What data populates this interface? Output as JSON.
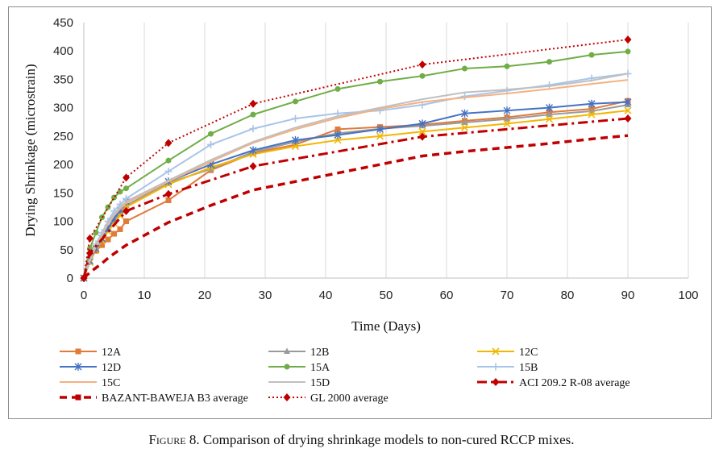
{
  "caption": {
    "prefix": "Figure 8.",
    "text": " Comparison of drying shrinkage models to non-cured RCCP mixes."
  },
  "chart_data": {
    "type": "line",
    "xlabel": "Time (Days)",
    "ylabel": "Drying Shrinkage (microstrain)",
    "xlim": [
      0,
      100
    ],
    "ylim": [
      0,
      450
    ],
    "xticks": [
      0,
      10,
      20,
      30,
      40,
      50,
      60,
      70,
      80,
      90,
      100
    ],
    "yticks": [
      0,
      50,
      100,
      150,
      200,
      250,
      300,
      350,
      400,
      450
    ],
    "grid": "vertical",
    "legend_position": "bottom",
    "series": [
      {
        "name": "12A",
        "color": "#e07b39",
        "marker": "square",
        "dash": "solid",
        "width": 2,
        "x": [
          0,
          1,
          2,
          3,
          4,
          5,
          6,
          7,
          14,
          21,
          28,
          35,
          42,
          49,
          56,
          63,
          70,
          77,
          84,
          90
        ],
        "y": [
          0,
          35,
          48,
          58,
          68,
          78,
          86,
          100,
          137,
          190,
          220,
          235,
          262,
          266,
          270,
          277,
          283,
          292,
          298,
          312
        ]
      },
      {
        "name": "12B",
        "color": "#9a9a9a",
        "marker": "triangle",
        "dash": "solid",
        "width": 2,
        "x": [
          0,
          1,
          2,
          3,
          4,
          5,
          6,
          7,
          14,
          21,
          28,
          35,
          42,
          49,
          56,
          63,
          70,
          77,
          84,
          90
        ],
        "y": [
          0,
          30,
          52,
          68,
          85,
          100,
          115,
          128,
          168,
          192,
          222,
          240,
          255,
          263,
          268,
          274,
          280,
          288,
          294,
          305
        ]
      },
      {
        "name": "12C",
        "color": "#f2b705",
        "marker": "x",
        "dash": "solid",
        "width": 2,
        "x": [
          0,
          1,
          2,
          3,
          4,
          5,
          6,
          7,
          14,
          21,
          28,
          35,
          42,
          49,
          56,
          63,
          70,
          77,
          84,
          90
        ],
        "y": [
          0,
          28,
          50,
          66,
          82,
          97,
          110,
          125,
          165,
          195,
          218,
          232,
          243,
          250,
          258,
          265,
          272,
          280,
          288,
          295
        ]
      },
      {
        "name": "12D",
        "color": "#4472c4",
        "marker": "star",
        "dash": "solid",
        "width": 2,
        "x": [
          0,
          1,
          2,
          3,
          4,
          5,
          6,
          7,
          14,
          21,
          28,
          35,
          42,
          49,
          56,
          63,
          70,
          77,
          84,
          90
        ],
        "y": [
          0,
          30,
          52,
          70,
          88,
          105,
          120,
          135,
          170,
          200,
          225,
          243,
          252,
          262,
          272,
          290,
          295,
          300,
          307,
          310
        ]
      },
      {
        "name": "15A",
        "color": "#70ad47",
        "marker": "circle",
        "dash": "solid",
        "width": 2,
        "x": [
          0,
          1,
          2,
          3,
          4,
          5,
          6,
          7,
          14,
          21,
          28,
          35,
          42,
          49,
          56,
          63,
          70,
          77,
          84,
          90
        ],
        "y": [
          0,
          52,
          80,
          107,
          125,
          142,
          152,
          158,
          207,
          254,
          288,
          311,
          333,
          346,
          356,
          369,
          373,
          381,
          393,
          399
        ]
      },
      {
        "name": "15B",
        "color": "#a9c4e7",
        "marker": "plus",
        "dash": "solid",
        "width": 2,
        "x": [
          0,
          1,
          2,
          3,
          4,
          5,
          6,
          7,
          14,
          21,
          28,
          35,
          42,
          49,
          56,
          63,
          70,
          77,
          84,
          90
        ],
        "y": [
          0,
          35,
          60,
          80,
          100,
          118,
          130,
          140,
          188,
          235,
          263,
          281,
          290,
          295,
          305,
          320,
          330,
          340,
          352,
          360
        ]
      },
      {
        "name": "15C",
        "color": "#f4b183",
        "marker": "none",
        "dash": "solid",
        "width": 2,
        "x": [
          0,
          1,
          2,
          3,
          4,
          5,
          6,
          7,
          14,
          21,
          28,
          35,
          42,
          49,
          56,
          63,
          70,
          77,
          84,
          90
        ],
        "y": [
          0,
          30,
          55,
          75,
          95,
          110,
          122,
          132,
          170,
          205,
          238,
          262,
          282,
          298,
          310,
          318,
          325,
          333,
          342,
          349
        ]
      },
      {
        "name": "15D",
        "color": "#c0c0c0",
        "marker": "none",
        "dash": "solid",
        "width": 2,
        "x": [
          0,
          1,
          2,
          3,
          4,
          5,
          6,
          7,
          14,
          21,
          28,
          35,
          42,
          49,
          56,
          63,
          70,
          77,
          84,
          90
        ],
        "y": [
          0,
          32,
          58,
          78,
          98,
          112,
          125,
          135,
          172,
          208,
          240,
          265,
          285,
          300,
          315,
          327,
          332,
          338,
          348,
          360
        ]
      },
      {
        "name": "ACI 209.2 R-08  average",
        "color": "#c00000",
        "marker": "diamond",
        "dash": "dashdot",
        "width": 3,
        "x": [
          0,
          1,
          7,
          14,
          28,
          56,
          90
        ],
        "y": [
          0,
          44,
          118,
          148,
          197,
          249,
          281
        ]
      },
      {
        "name": "BAZANT-BAWEJA B3 average",
        "color": "#c00000",
        "marker": "none",
        "dash": "dash",
        "width": 3.5,
        "x": [
          0,
          1,
          2,
          3,
          4,
          5,
          7,
          14,
          21,
          28,
          35,
          42,
          49,
          56,
          63,
          70,
          77,
          84,
          90
        ],
        "y": [
          0,
          10,
          18,
          26,
          35,
          43,
          58,
          98,
          128,
          155,
          170,
          185,
          200,
          215,
          223,
          230,
          237,
          245,
          251
        ]
      },
      {
        "name": "GL 2000 average",
        "color": "#c00000",
        "marker": "diamond",
        "dash": "dot",
        "width": 2,
        "x": [
          0,
          1,
          7,
          14,
          28,
          56,
          90
        ],
        "y": [
          0,
          70,
          177,
          238,
          307,
          376,
          420
        ]
      }
    ]
  }
}
